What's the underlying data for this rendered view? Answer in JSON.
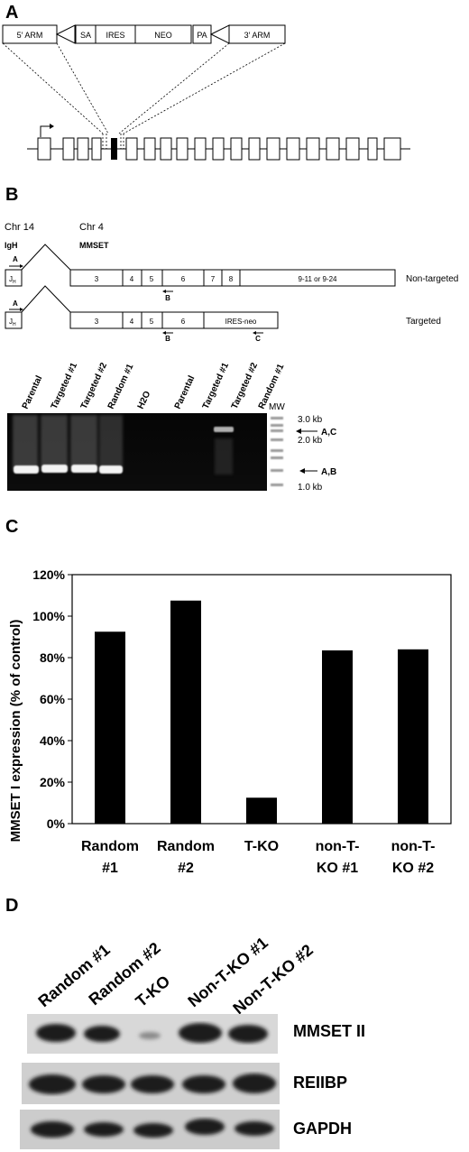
{
  "panels": {
    "a": "A",
    "b": "B",
    "c": "C",
    "d": "D"
  },
  "panel_a": {
    "construct": [
      "5′ ARM",
      "SA",
      "IRES",
      "NEO",
      "PA",
      "3′ ARM"
    ]
  },
  "panel_b": {
    "chr14": "Chr 14",
    "chr4": "Chr 4",
    "igh": "IgH",
    "mmset": "MMSET",
    "jh": "J",
    "jh_sub": "H",
    "primer_a": "A",
    "primer_b": "B",
    "primer_c": "C",
    "exons_nontargeted": [
      "3",
      "4",
      "5",
      "6",
      "7",
      "8",
      "9-11 or 9-24"
    ],
    "exons_targeted": [
      "3",
      "4",
      "5",
      "6",
      "IRES-neo"
    ],
    "row_nontargeted": "Non-targeted",
    "row_targeted": "Targeted",
    "gel_lanes": [
      "Parental",
      "Targeted #1",
      "Targeted #2",
      "Random #1",
      "H2O",
      "Parental",
      "Targeted #1",
      "Targeted #2",
      "Random #1"
    ],
    "mw": "MW",
    "mw_sizes": [
      "3.0 kb",
      "2.0 kb",
      "1.0 kb"
    ],
    "band_ac": "A,C",
    "band_ab": "A,B"
  },
  "chart_data": {
    "type": "bar",
    "categories": [
      [
        "Random",
        "#1"
      ],
      [
        "Random",
        "#2"
      ],
      [
        "T-KO",
        ""
      ],
      [
        "non-T-",
        "KO #1"
      ],
      [
        "non-T-",
        "KO #2"
      ]
    ],
    "values": [
      92.5,
      107.5,
      12.5,
      83.5,
      84
    ],
    "ylabel": "MMSET I expression (% of control)",
    "ylim": [
      0,
      120
    ],
    "yticks": [
      "0%",
      "20%",
      "40%",
      "60%",
      "80%",
      "100%",
      "120%"
    ],
    "bar_color": "#000000",
    "grid": false
  },
  "panel_d": {
    "lanes": [
      "Random #1",
      "Random #2",
      "T-KO",
      "Non-T-KO #1",
      "Non-T-KO #2"
    ],
    "blots": [
      "MMSET II",
      "REIIBP",
      "GAPDH"
    ]
  }
}
